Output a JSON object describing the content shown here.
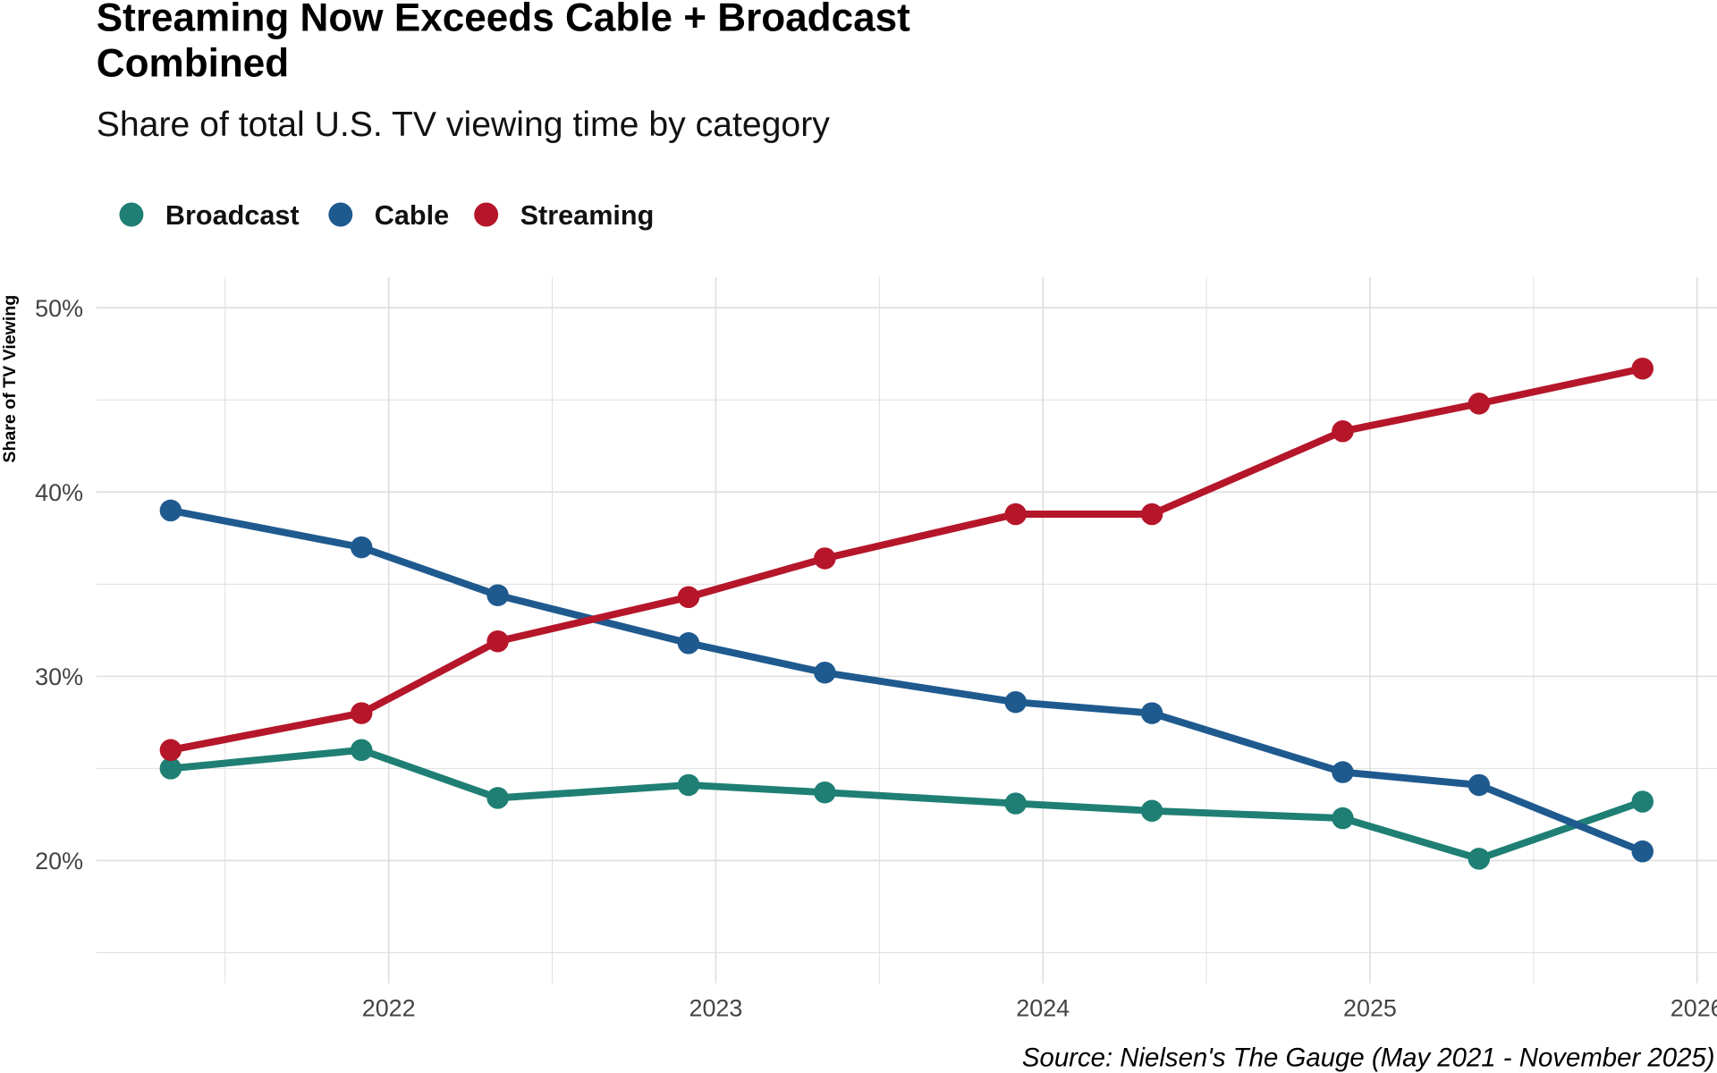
{
  "chart_data": {
    "type": "line",
    "title": "Streaming Now Exceeds Cable + Broadcast Combined",
    "title_lines": [
      "Streaming Now Exceeds Cable + Broadcast",
      "Combined"
    ],
    "subtitle": "Share of total U.S. TV viewing time by category",
    "xlabel": "",
    "ylabel": "Share of TV Viewing",
    "caption": "Source: Nielsen's The Gauge (May 2021 - November 2025)",
    "x": [
      "2021-05",
      "2021-12",
      "2022-05",
      "2022-12",
      "2023-05",
      "2023-12",
      "2024-05",
      "2024-12",
      "2025-05",
      "2025-11"
    ],
    "x_ticks": [
      "2022",
      "2023",
      "2024",
      "2025",
      "2026"
    ],
    "y_ticks": [
      "20%",
      "30%",
      "40%",
      "50%"
    ],
    "y_tick_values": [
      20,
      30,
      40,
      50
    ],
    "ylim": [
      15,
      51.7
    ],
    "grid": true,
    "legend_position": "top-left",
    "series": [
      {
        "name": "Broadcast",
        "color": "#1f7f74",
        "values": [
          25.0,
          26.0,
          23.4,
          24.1,
          23.7,
          23.1,
          22.7,
          22.3,
          20.1,
          23.2
        ]
      },
      {
        "name": "Cable",
        "color": "#1f5a8f",
        "values": [
          39.0,
          37.0,
          34.4,
          31.8,
          30.2,
          28.6,
          28.0,
          24.8,
          24.1,
          20.5
        ]
      },
      {
        "name": "Streaming",
        "color": "#b5162a",
        "values": [
          26.0,
          28.0,
          31.9,
          34.3,
          36.4,
          38.8,
          38.8,
          43.3,
          44.8,
          46.7
        ]
      }
    ]
  }
}
